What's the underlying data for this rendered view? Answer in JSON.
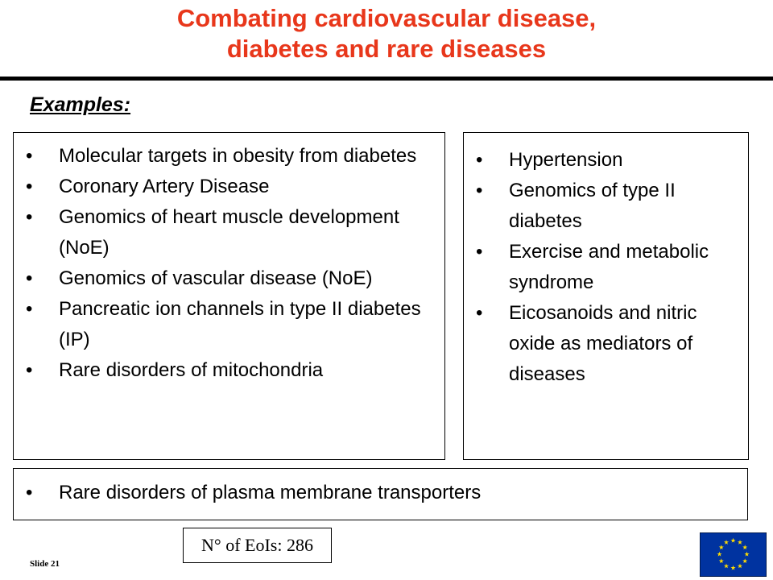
{
  "slide": {
    "title_line1": "Combating cardiovascular disease,",
    "title_line2": "diabetes and rare diseases",
    "section_label": "Examples:",
    "left_items": [
      "Molecular targets in obesity from diabetes",
      "Coronary Artery Disease",
      "Genomics of heart muscle development (NoE)",
      "Genomics of vascular disease (NoE)",
      "Pancreatic ion channels in type II diabetes (IP)",
      "Rare disorders of mitochondria"
    ],
    "right_items": [
      "Hypertension",
      "Genomics of type II diabetes",
      "Exercise and metabolic syndrome",
      "Eicosanoids and nitric oxide as mediators of diseases"
    ],
    "bottom_items": [
      "Rare disorders of plasma membrane transporters"
    ],
    "eoi_count": "N° of EoIs: 286",
    "slide_number": "Slide 21"
  },
  "colors": {
    "title": "#e8371b",
    "flag_blue": "#0033a0",
    "flag_stars": "#ffdd00"
  },
  "icons": {
    "logo": "eu-flag-icon"
  }
}
